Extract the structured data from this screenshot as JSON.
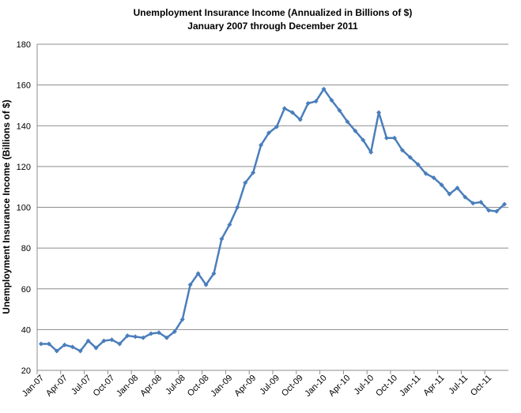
{
  "chart_data": {
    "type": "line",
    "title": "Unemployment Insurance Income (Annualized in Billions of $)",
    "subtitle": "January 2007 through December 2011",
    "y_label": "Unemployment Insurance Income (Billions of $)",
    "categories": [
      "Jan-07",
      null,
      null,
      "Apr-07",
      null,
      null,
      "Jul-07",
      null,
      null,
      "Oct-07",
      null,
      null,
      "Jan-08",
      null,
      null,
      "Apr-08",
      null,
      null,
      "Jul-08",
      null,
      null,
      "Oct-08",
      null,
      null,
      "Jan-09",
      null,
      null,
      "Apr-09",
      null,
      null,
      "Jul-09",
      null,
      null,
      "Oct-09",
      null,
      null,
      "Jan-10",
      null,
      null,
      "Apr-10",
      null,
      null,
      "Jul-10",
      null,
      null,
      "Oct-10",
      null,
      null,
      "Jan-11",
      null,
      null,
      "Apr-11",
      null,
      null,
      "Jul-11",
      null,
      null,
      "Oct-11",
      null,
      null
    ],
    "series": [
      {
        "name": "Unemployment Insurance Income",
        "color": "#4a7ebb",
        "values": [
          33,
          33,
          29.5,
          32.5,
          31.5,
          29.5,
          34.5,
          31,
          34.5,
          35,
          33,
          37,
          36.5,
          36,
          38,
          38.5,
          36,
          39,
          45,
          62,
          67.5,
          62,
          67.5,
          84.5,
          91.5,
          100,
          112,
          117,
          130.5,
          136.5,
          139.5,
          148.5,
          146.5,
          143,
          151,
          152,
          158,
          152.5,
          147.5,
          142,
          137.5,
          133,
          127,
          146.5,
          134,
          134,
          128,
          124.5,
          121,
          116.5,
          114.5,
          111,
          106.5,
          109.5,
          105,
          102,
          102.5,
          98.5,
          98,
          101.5
        ]
      }
    ],
    "ylim": [
      20,
      180
    ],
    "yticks": [
      20,
      40,
      60,
      80,
      100,
      120,
      140,
      160,
      180
    ],
    "grid": true
  }
}
